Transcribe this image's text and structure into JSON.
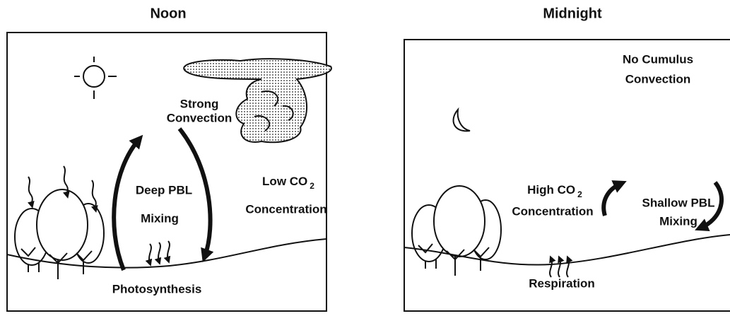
{
  "panels": [
    {
      "title": "Noon",
      "convection": [
        "Strong",
        "Convection"
      ],
      "mixing": [
        "Deep PBL",
        "Mixing"
      ],
      "co2": {
        "prefix": "Low CO",
        "subscript": "2",
        "line2": "Concentration"
      },
      "process": "Photosynthesis"
    },
    {
      "title": "Midnight",
      "convection": [
        "No Cumulus",
        "Convection"
      ],
      "mixing": [
        "Shallow PBL",
        "Mixing"
      ],
      "co2": {
        "prefix": "High CO",
        "subscript": "2",
        "line2": "Concentration"
      },
      "process": "Respiration"
    }
  ]
}
